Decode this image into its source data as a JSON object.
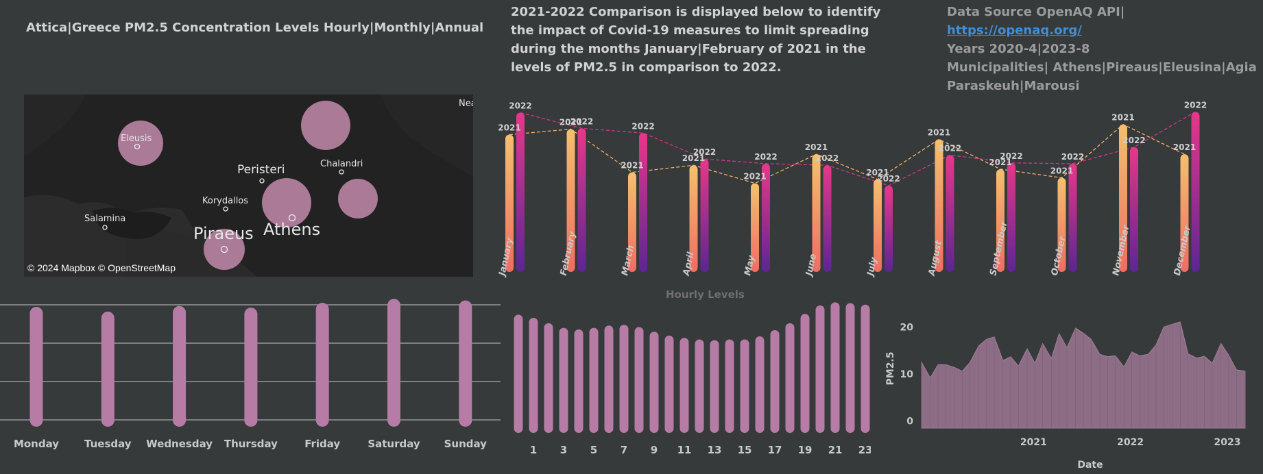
{
  "header": {
    "title": "Attica|Greece PM2.5 Concentration Levels Hourly|Monthly|Annual",
    "description": "2021-2022 Comparison is displayed below to identify the impact of Covid-19 measures to limit spreading during the months January|February of 2021 in the levels of PM2.5 in comparison to 2022.",
    "source_prefix": "Data Source OpenAQ API| ",
    "source_link": "https://openaq.org/",
    "years": "Years 2020-4|2023-8",
    "municipalities": "Municipalities| Athens|Pireaus|Eleusina|Agia Paraskeuh|Marousi"
  },
  "map": {
    "attribution": "© 2024 Mapbox  © OpenStreetMap",
    "labels": {
      "eleusis": "Eleusis",
      "peristeri": "Peristeri",
      "chalandri": "Chalandri",
      "korydallos": "Korydallos",
      "salamina": "Salamina",
      "piraeus": "Piraeus",
      "athens": "Athens",
      "edge": "Nea"
    }
  },
  "chart_data": [
    {
      "type": "bar",
      "chart": "monthly-comparison",
      "categories": [
        "January",
        "February",
        "March",
        "April",
        "May",
        "June",
        "July",
        "August",
        "September",
        "October",
        "November",
        "December"
      ],
      "series": [
        {
          "name": "2021",
          "values": [
            17.5,
            18.2,
            12.7,
            13.6,
            11.3,
            15.0,
            11.8,
            16.9,
            13.1,
            12.0,
            18.8,
            15.0
          ],
          "color": "#f4b266"
        },
        {
          "name": "2022",
          "values": [
            20.3,
            18.3,
            17.7,
            14.4,
            13.8,
            13.6,
            11.0,
            14.9,
            13.9,
            13.8,
            15.9,
            20.4
          ],
          "color": "#d7338e"
        }
      ],
      "ylim": [
        0,
        22
      ]
    },
    {
      "type": "bar",
      "chart": "weekday-levels",
      "categories": [
        "Monday",
        "Tuesday",
        "Wednesday",
        "Thursday",
        "Friday",
        "Saturday",
        "Sunday"
      ],
      "values": [
        14.8,
        14.2,
        14.9,
        14.7,
        15.3,
        15.8,
        15.6
      ],
      "ylim": [
        0,
        16
      ],
      "color": "#b67ca6"
    },
    {
      "type": "bar",
      "chart": "hourly-levels",
      "title": "Hourly Levels",
      "categories": [
        "0",
        "1",
        "2",
        "3",
        "4",
        "5",
        "6",
        "7",
        "8",
        "9",
        "10",
        "11",
        "12",
        "13",
        "14",
        "15",
        "16",
        "17",
        "18",
        "19",
        "20",
        "21",
        "22",
        "23"
      ],
      "tick_labels": [
        "1",
        "3",
        "5",
        "7",
        "9",
        "11",
        "13",
        "15",
        "17",
        "19",
        "21",
        "23"
      ],
      "values": [
        15.3,
        14.9,
        14.2,
        13.6,
        13.4,
        13.6,
        13.9,
        14.0,
        13.7,
        13.1,
        12.6,
        12.3,
        12.1,
        12.0,
        12.1,
        12.1,
        12.5,
        13.3,
        14.2,
        15.4,
        16.5,
        16.9,
        16.8,
        16.6
      ],
      "ylim": [
        0,
        17.2
      ],
      "color": "#b67ca6"
    },
    {
      "type": "area",
      "chart": "daily-trend",
      "xlabel": "Date",
      "ylabel": "PM2.5",
      "x_ticks": [
        "2021",
        "2022",
        "2023"
      ],
      "y_ticks": [
        0,
        10,
        20
      ],
      "x_range": [
        2020.33,
        2023.67
      ],
      "ylim": [
        -1.5,
        24
      ],
      "x": [
        2020.33,
        2020.42,
        2020.5,
        2020.58,
        2020.67,
        2020.75,
        2020.83,
        2020.92,
        2021.0,
        2021.08,
        2021.17,
        2021.25,
        2021.33,
        2021.42,
        2021.5,
        2021.58,
        2021.67,
        2021.75,
        2021.83,
        2021.92,
        2022.0,
        2022.08,
        2022.17,
        2022.25,
        2022.33,
        2022.42,
        2022.5,
        2022.58,
        2022.67,
        2022.75,
        2022.83,
        2022.92,
        2023.0,
        2023.08,
        2023.17,
        2023.25,
        2023.33,
        2023.42,
        2023.5,
        2023.58,
        2023.67
      ],
      "values": [
        12.5,
        9.2,
        12.0,
        12.0,
        11.4,
        10.6,
        12.5,
        16.0,
        17.4,
        17.9,
        12.9,
        13.7,
        11.7,
        15.4,
        12.3,
        16.5,
        13.3,
        18.6,
        15.6,
        19.8,
        18.7,
        17.4,
        14.2,
        13.7,
        13.9,
        11.5,
        14.7,
        13.9,
        14.2,
        16.2,
        20.0,
        20.6,
        21.1,
        14.3,
        13.4,
        13.8,
        12.3,
        16.5,
        14.0,
        10.9,
        10.6
      ],
      "color": "#8d6d85"
    }
  ]
}
